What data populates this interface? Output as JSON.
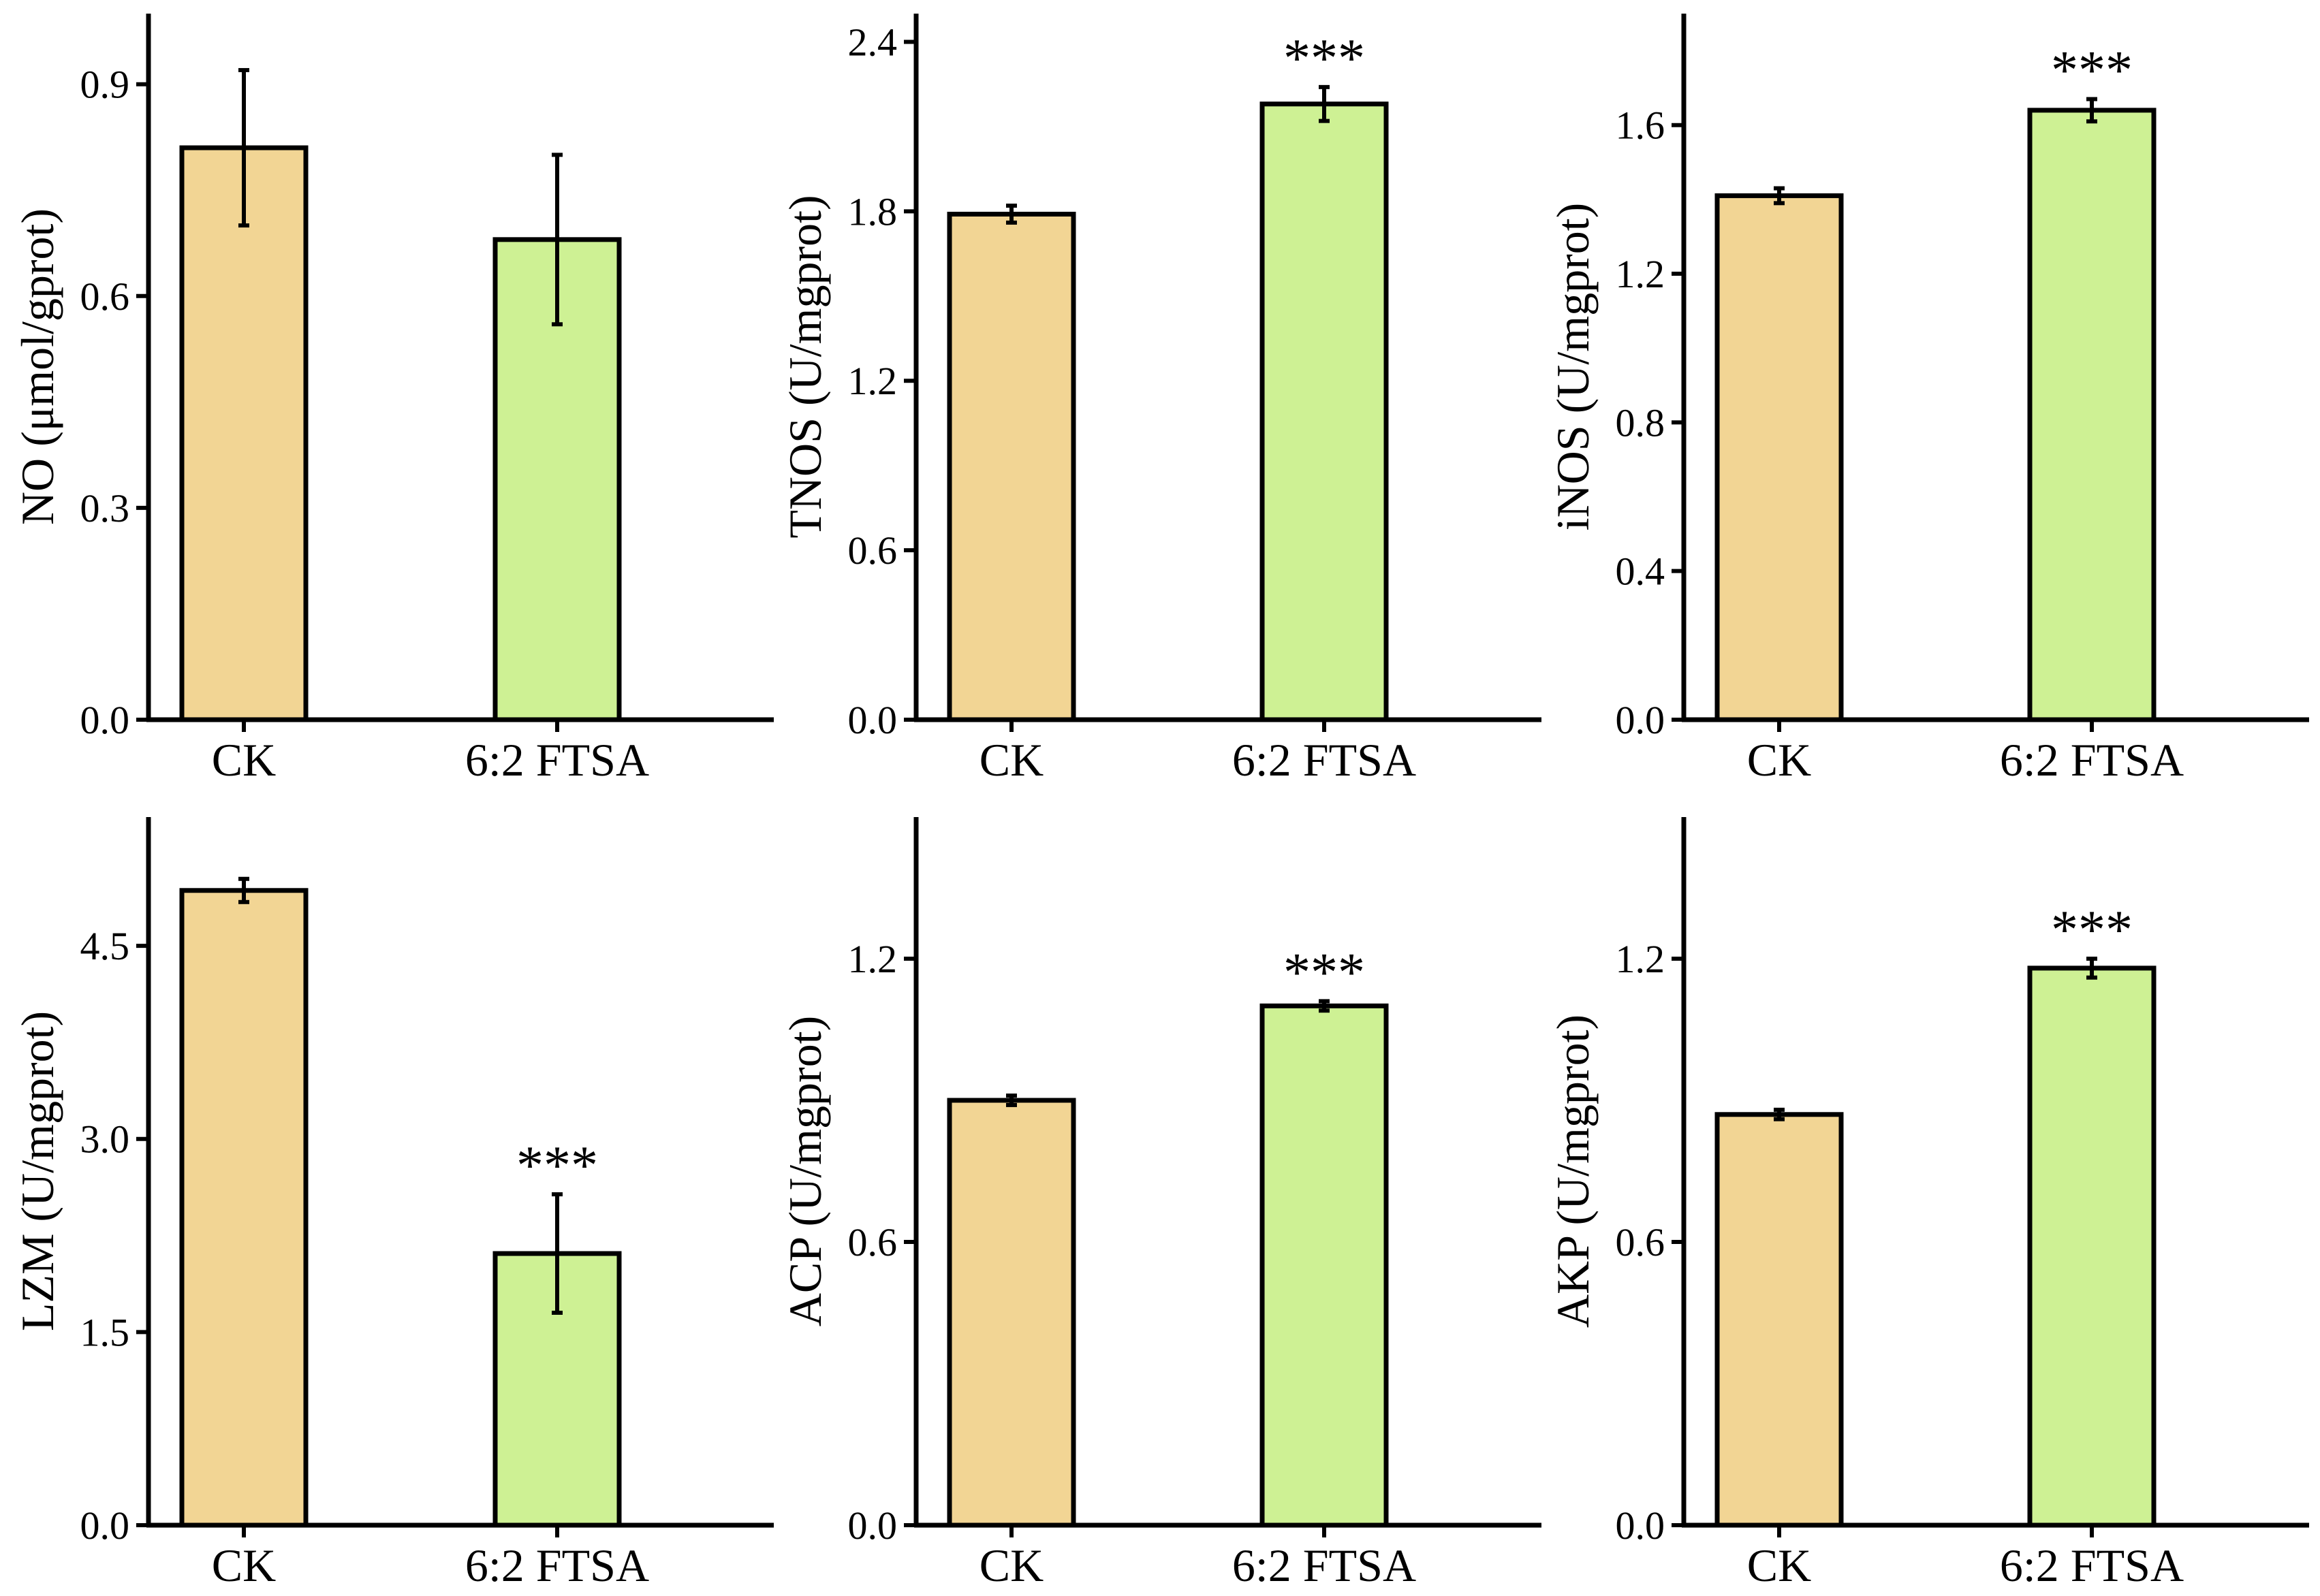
{
  "colors": {
    "ck": "#f2d594",
    "ftsa": "#cef194",
    "stroke": "#000000"
  },
  "chart_data": [
    {
      "type": "bar",
      "ylabel": "NO (μmol/gprot)",
      "categories": [
        "CK",
        "6:2 FTSA"
      ],
      "values": [
        0.81,
        0.68
      ],
      "errors": [
        0.11,
        0.12
      ],
      "significance": [
        "",
        ""
      ],
      "ylim": [
        0,
        1.0
      ],
      "ticks": [
        0.0,
        0.3,
        0.6,
        0.9
      ],
      "tick_labels": [
        "0.0",
        "0.3",
        "0.6",
        "0.9"
      ]
    },
    {
      "type": "bar",
      "ylabel": "TNOS (U/mgprot)",
      "categories": [
        "CK",
        "6:2 FTSA"
      ],
      "values": [
        1.79,
        2.18
      ],
      "errors": [
        0.03,
        0.06
      ],
      "significance": [
        "",
        "***"
      ],
      "ylim": [
        0,
        2.5
      ],
      "ticks": [
        0.0,
        0.6,
        1.2,
        1.8,
        2.4
      ],
      "tick_labels": [
        "0.0",
        "0.6",
        "1.2",
        "1.8",
        "2.4"
      ]
    },
    {
      "type": "bar",
      "ylabel": "iNOS (U/mgprot)",
      "categories": [
        "CK",
        "6:2 FTSA"
      ],
      "values": [
        1.41,
        1.64
      ],
      "errors": [
        0.02,
        0.03
      ],
      "significance": [
        "",
        "***"
      ],
      "ylim": [
        0,
        1.9
      ],
      "ticks": [
        0.0,
        0.4,
        0.8,
        1.2,
        1.6
      ],
      "tick_labels": [
        "0.0",
        "0.4",
        "0.8",
        "1.2",
        "1.6"
      ]
    },
    {
      "type": "bar",
      "ylabel": "LZM (U/mgprot)",
      "categories": [
        "CK",
        "6:2 FTSA"
      ],
      "values": [
        4.93,
        2.11
      ],
      "errors": [
        0.09,
        0.46
      ],
      "significance": [
        "",
        "***"
      ],
      "ylim": [
        0,
        5.5
      ],
      "ticks": [
        0.0,
        1.5,
        3.0,
        4.5
      ],
      "tick_labels": [
        "0.0",
        "1.5",
        "3.0",
        "4.5"
      ]
    },
    {
      "type": "bar",
      "ylabel": "ACP (U/mgprot)",
      "categories": [
        "CK",
        "6:2 FTSA"
      ],
      "values": [
        0.9,
        1.1
      ],
      "errors": [
        0.01,
        0.01
      ],
      "significance": [
        "",
        "***"
      ],
      "ylim": [
        0,
        1.5
      ],
      "ticks": [
        0.0,
        0.6,
        1.2
      ],
      "tick_labels": [
        "0.0",
        "0.6",
        "1.2"
      ]
    },
    {
      "type": "bar",
      "ylabel": "AKP (U/mgprot)",
      "categories": [
        "CK",
        "6:2 FTSA"
      ],
      "values": [
        0.87,
        1.18
      ],
      "errors": [
        0.01,
        0.02
      ],
      "significance": [
        "",
        "***"
      ],
      "ylim": [
        0,
        1.5
      ],
      "ticks": [
        0.0,
        0.6,
        1.2
      ],
      "tick_labels": [
        "0.0",
        "0.6",
        "1.2"
      ]
    }
  ]
}
